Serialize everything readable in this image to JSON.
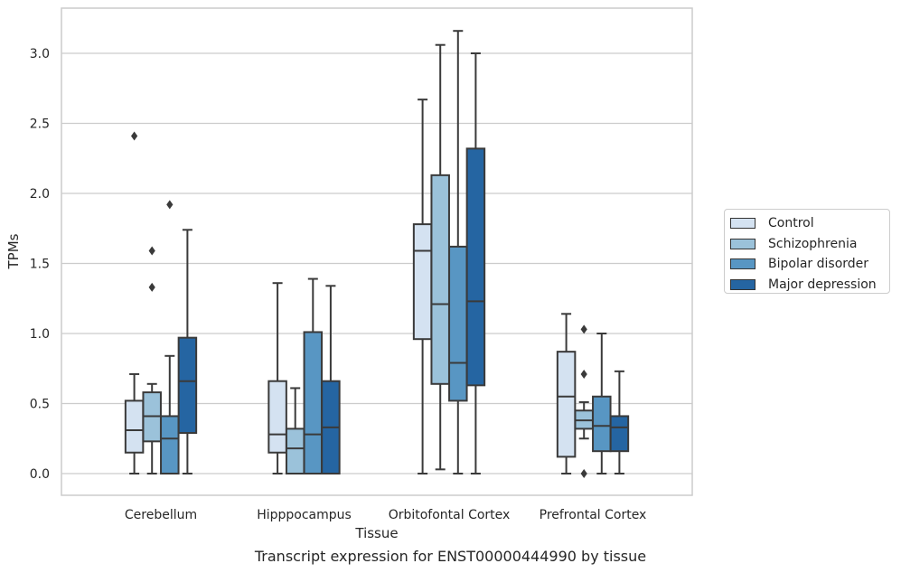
{
  "chart_data": {
    "type": "box",
    "xlabel": "Tissue",
    "ylabel": "TPMs",
    "caption": "Transcript expression for ENST00000444990 by tissue",
    "ylim": [
      -0.15,
      3.32
    ],
    "yticks": [
      "0.0",
      "0.5",
      "1.0",
      "1.5",
      "2.0",
      "2.5",
      "3.0"
    ],
    "ytick_values": [
      0,
      0.5,
      1.0,
      1.5,
      2.0,
      2.5,
      3.0
    ],
    "grid": "horizontal",
    "legend_position": "right",
    "categories": [
      "Cerebellum",
      "Hipppocampus",
      "Orbitofontal Cortex",
      "Prefrontal Cortex"
    ],
    "series": [
      {
        "name": "Control",
        "color": "#d4e2f1",
        "boxes": [
          {
            "whisker_low": 0.0,
            "q1": 0.15,
            "median": 0.31,
            "q3": 0.52,
            "whisker_high": 0.71,
            "outliers": [
              2.41
            ]
          },
          {
            "whisker_low": 0.0,
            "q1": 0.15,
            "median": 0.28,
            "q3": 0.66,
            "whisker_high": 1.36,
            "outliers": []
          },
          {
            "whisker_low": 0.0,
            "q1": 0.96,
            "median": 1.59,
            "q3": 1.78,
            "whisker_high": 2.67,
            "outliers": []
          },
          {
            "whisker_low": 0.0,
            "q1": 0.12,
            "median": 0.55,
            "q3": 0.87,
            "whisker_high": 1.14,
            "outliers": []
          }
        ]
      },
      {
        "name": "Schizophrenia",
        "color": "#9bc2da",
        "boxes": [
          {
            "whisker_low": 0.0,
            "q1": 0.23,
            "median": 0.41,
            "q3": 0.58,
            "whisker_high": 0.64,
            "outliers": [
              1.59,
              1.33
            ]
          },
          {
            "whisker_low": 0.0,
            "q1": 0.0,
            "median": 0.18,
            "q3": 0.32,
            "whisker_high": 0.61,
            "outliers": []
          },
          {
            "whisker_low": 0.03,
            "q1": 0.64,
            "median": 1.21,
            "q3": 2.13,
            "whisker_high": 3.06,
            "outliers": []
          },
          {
            "whisker_low": 0.25,
            "q1": 0.32,
            "median": 0.38,
            "q3": 0.45,
            "whisker_high": 0.51,
            "outliers": [
              1.03,
              0.71,
              0.0
            ]
          }
        ]
      },
      {
        "name": "Bipolar disorder",
        "color": "#5896c3",
        "boxes": [
          {
            "whisker_low": 0.0,
            "q1": 0.0,
            "median": 0.25,
            "q3": 0.41,
            "whisker_high": 0.84,
            "outliers": [
              1.92
            ]
          },
          {
            "whisker_low": 0.0,
            "q1": 0.0,
            "median": 0.28,
            "q3": 1.01,
            "whisker_high": 1.39,
            "outliers": []
          },
          {
            "whisker_low": 0.0,
            "q1": 0.52,
            "median": 0.79,
            "q3": 1.62,
            "whisker_high": 3.16,
            "outliers": []
          },
          {
            "whisker_low": 0.0,
            "q1": 0.16,
            "median": 0.34,
            "q3": 0.55,
            "whisker_high": 1.0,
            "outliers": []
          }
        ]
      },
      {
        "name": "Major depression",
        "color": "#2565a2",
        "boxes": [
          {
            "whisker_low": 0.0,
            "q1": 0.29,
            "median": 0.66,
            "q3": 0.97,
            "whisker_high": 1.74,
            "outliers": []
          },
          {
            "whisker_low": 0.0,
            "q1": 0.0,
            "median": 0.33,
            "q3": 0.66,
            "whisker_high": 1.34,
            "outliers": []
          },
          {
            "whisker_low": 0.0,
            "q1": 0.63,
            "median": 1.23,
            "q3": 2.32,
            "whisker_high": 3.0,
            "outliers": []
          },
          {
            "whisker_low": 0.0,
            "q1": 0.16,
            "median": 0.33,
            "q3": 0.41,
            "whisker_high": 0.73,
            "outliers": []
          }
        ]
      }
    ]
  }
}
